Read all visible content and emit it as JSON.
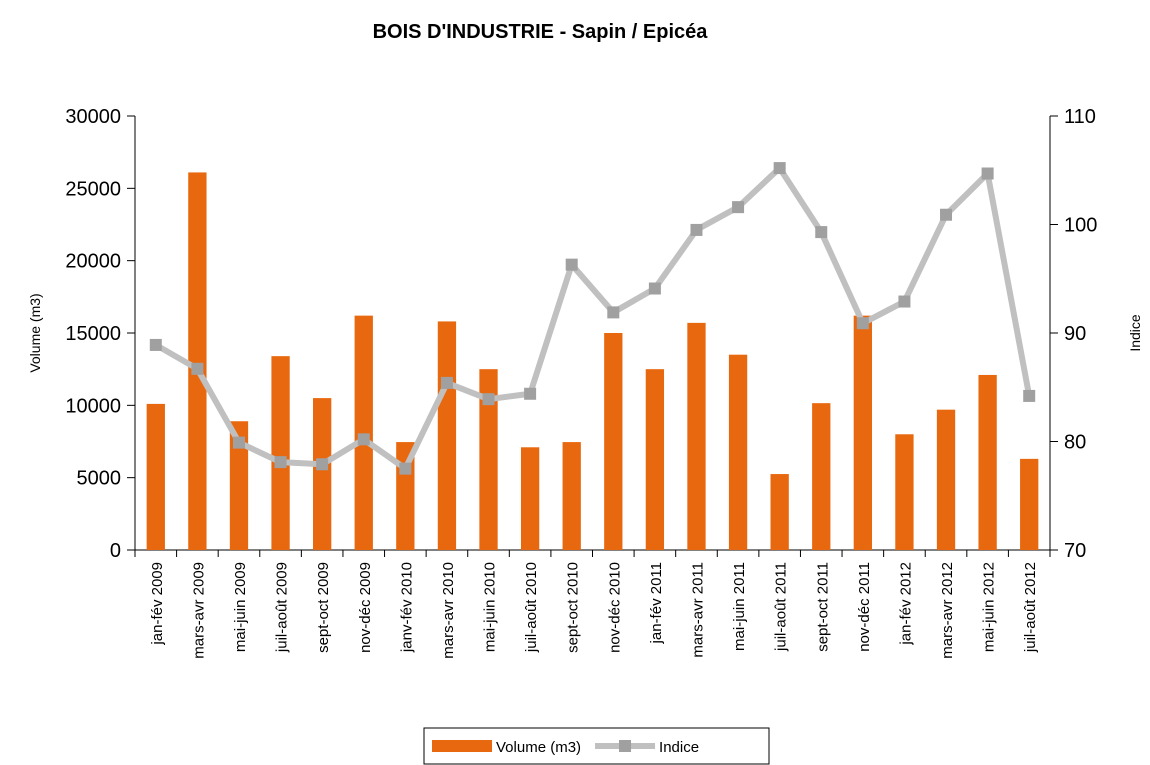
{
  "chart_data": {
    "type": "bar_line",
    "title": "BOIS D'INDUSTRIE - Sapin / Epicéa",
    "y_label": "Volume (m3)",
    "y2_label": "Indice",
    "categories": [
      "jan-fév 2009",
      "mars-avr 2009",
      "mai-juin 2009",
      "juil-août 2009",
      "sept-oct 2009",
      "nov-déc 2009",
      "janv-fév 2010",
      "mars-avr 2010",
      "mai-juin 2010",
      "juil-août 2010",
      "sept-oct 2010",
      "nov-déc 2010",
      "jan-fév 2011",
      "mars-avr 2011",
      "mai-juin 2011",
      "juil-août 2011",
      "sept-oct 2011",
      "nov-déc 2011",
      "jan-fév 2012",
      "mars-avr 2012",
      "mai-juin 2012",
      "juil-août 2012"
    ],
    "series": [
      {
        "name": "Volume (m3)",
        "type": "bar",
        "color": "#e8680f",
        "values": [
          10100,
          26100,
          8900,
          13400,
          10500,
          16200,
          7460,
          15800,
          12500,
          7100,
          7460,
          15000,
          12500,
          15700,
          13500,
          5250,
          10150,
          16200,
          8000,
          9700,
          12100,
          6300
        ]
      },
      {
        "name": "Indice",
        "type": "line",
        "axis": "y2",
        "color": "#c0c0c0",
        "marker_color": "#a0a0a0",
        "values": [
          88.9,
          86.7,
          79.9,
          78.1,
          77.9,
          80.2,
          77.5,
          85.4,
          83.9,
          84.4,
          96.3,
          91.9,
          94.1,
          99.5,
          101.6,
          105.2,
          99.3,
          90.9,
          92.9,
          100.9,
          104.7,
          84.2
        ]
      }
    ],
    "ylim": [
      0,
      30000
    ],
    "yticks": [
      0,
      5000,
      10000,
      15000,
      20000,
      25000,
      30000
    ],
    "y2lim": [
      70,
      110
    ],
    "y2ticks": [
      70,
      80,
      90,
      100,
      110
    ],
    "grid": false,
    "legend": "bottom"
  }
}
